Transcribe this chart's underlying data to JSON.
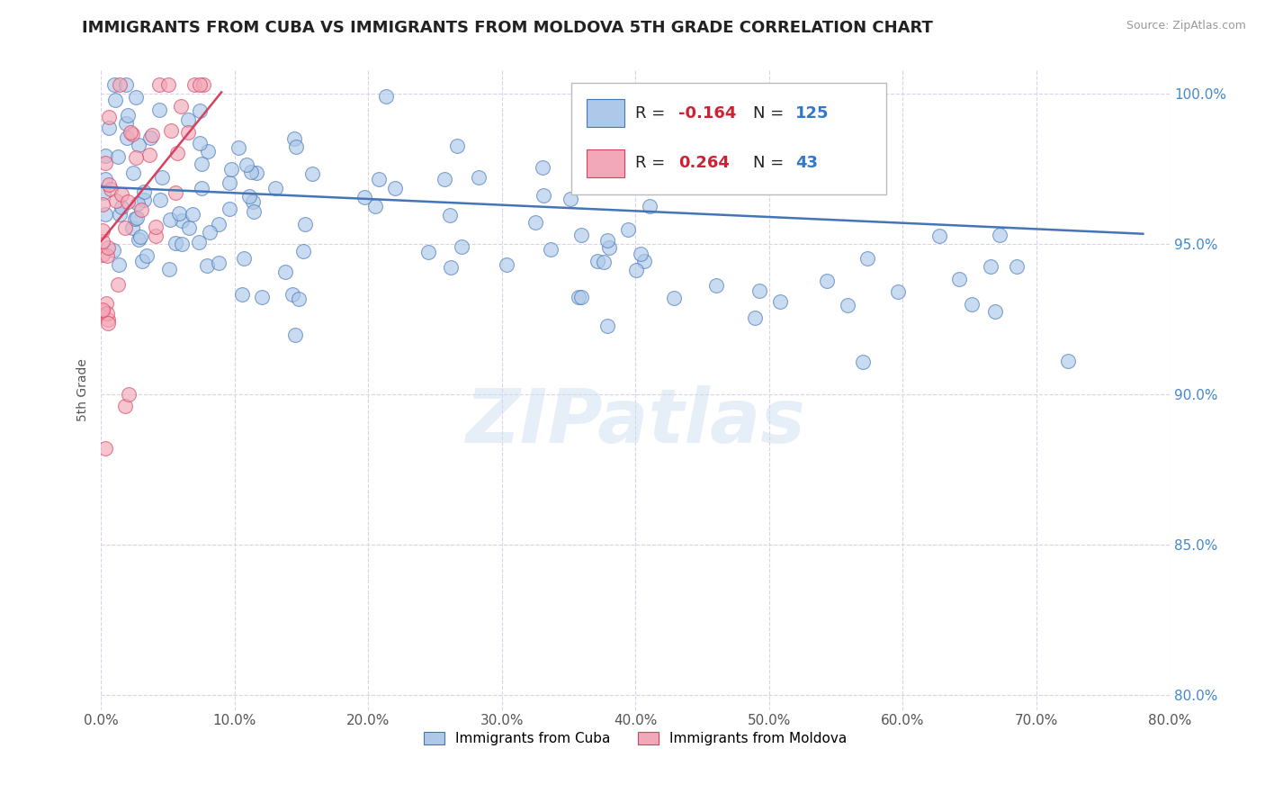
{
  "title": "IMMIGRANTS FROM CUBA VS IMMIGRANTS FROM MOLDOVA 5TH GRADE CORRELATION CHART",
  "source_text": "Source: ZipAtlas.com",
  "ylabel": "5th Grade",
  "legend_labels": [
    "Immigrants from Cuba",
    "Immigrants from Moldova"
  ],
  "r_cuba": -0.164,
  "n_cuba": 125,
  "r_moldova": 0.264,
  "n_moldova": 43,
  "color_cuba": "#adc8e8",
  "color_moldova": "#f2a8b8",
  "trendline_cuba": "#4475b8",
  "trendline_moldova": "#d84060",
  "xlim": [
    0.0,
    0.8
  ],
  "ylim": [
    0.795,
    1.008
  ],
  "xticks": [
    0.0,
    0.1,
    0.2,
    0.3,
    0.4,
    0.5,
    0.6,
    0.7,
    0.8
  ],
  "xticklabels": [
    "0.0%",
    "10.0%",
    "20.0%",
    "30.0%",
    "40.0%",
    "50.0%",
    "60.0%",
    "70.0%",
    "80.0%"
  ],
  "yticks": [
    0.8,
    0.85,
    0.9,
    0.95,
    1.0
  ],
  "yticklabels": [
    "80.0%",
    "85.0%",
    "90.0%",
    "95.0%",
    "100.0%"
  ],
  "watermark": "ZIPatlas",
  "title_fontsize": 13,
  "axis_label_fontsize": 10,
  "tick_fontsize": 11,
  "background_color": "#ffffff",
  "grid_color": "#ddd0e8"
}
